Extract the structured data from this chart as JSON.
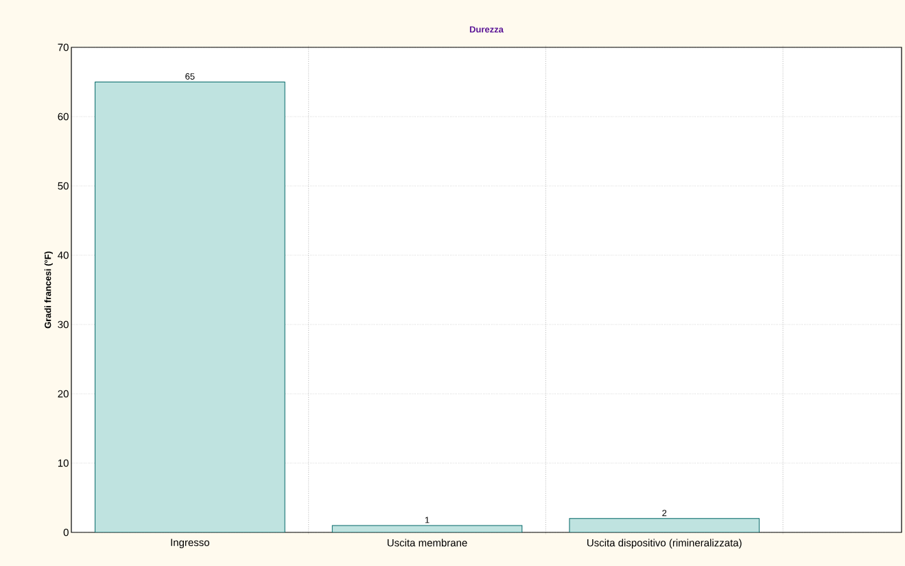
{
  "chart_data": {
    "type": "bar",
    "title": "Durezza",
    "ylabel": "Gradi francesi (°F)",
    "categories": [
      "Ingresso",
      "Uscita membrane",
      "Uscita dispositivo (rimineralizzata)"
    ],
    "values": [
      65,
      1,
      2
    ],
    "color": "#bfe3e0",
    "data_labels": true,
    "ylim": [
      0,
      70
    ],
    "yticks": [
      0,
      10,
      20,
      30,
      40,
      50,
      60,
      70
    ],
    "grid": true
  }
}
